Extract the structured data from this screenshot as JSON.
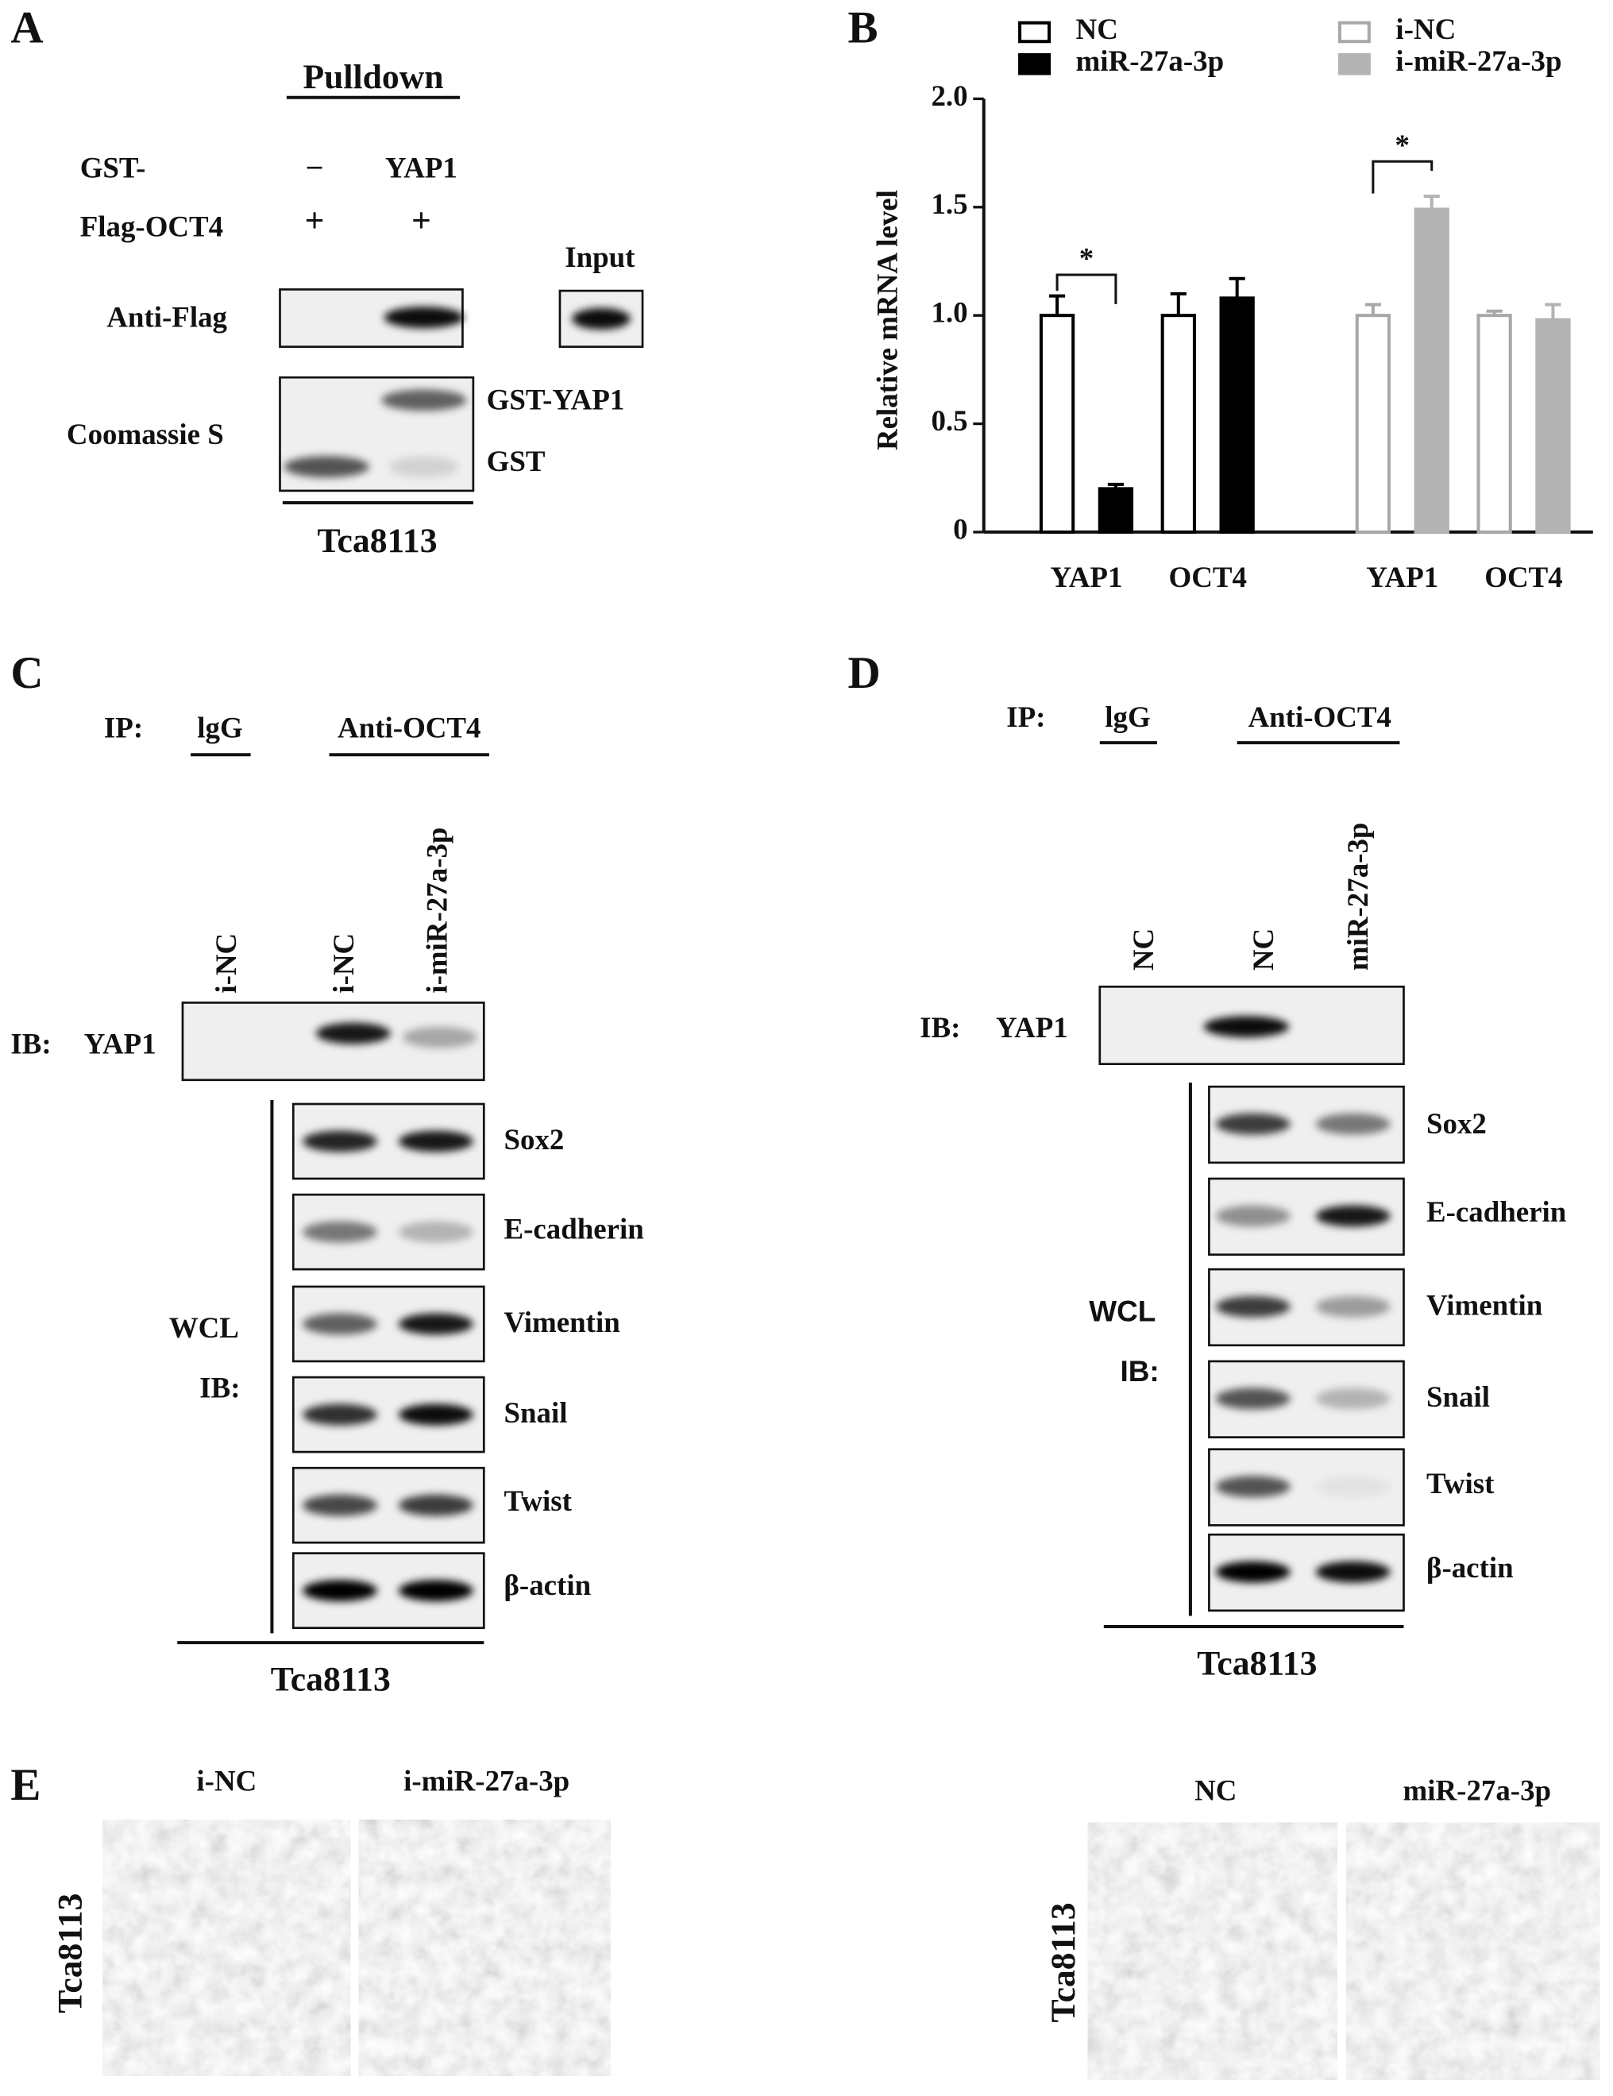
{
  "panel_a": {
    "label": "A",
    "title": "Pulldown",
    "gst_row": {
      "label": "GST-",
      "lanes": [
        "–",
        "YAP1"
      ]
    },
    "flag_row": {
      "label": "Flag-OCT4",
      "lanes": [
        "+",
        "+"
      ]
    },
    "input": "Input",
    "blots": [
      "Anti-Flag",
      "Coomassie S"
    ],
    "bands": [
      "GST-YAP1",
      "GST"
    ],
    "cell_line": "Tca8113"
  },
  "chart_data": {
    "type": "bar",
    "label": "B",
    "y_label": "Relative mRNA level",
    "categories": [
      "YAP1",
      "OCT4",
      "YAP1",
      "OCT4"
    ],
    "series": [
      {
        "name": "NC",
        "color": "#ffffff",
        "stroke": "#000000",
        "values": [
          1.0,
          1.0,
          null,
          null
        ],
        "errors": [
          0.09,
          0.1,
          null,
          null
        ]
      },
      {
        "name": "miR-27a-3p",
        "color": "#000000",
        "stroke": "#000000",
        "values": [
          0.2,
          1.08,
          null,
          null
        ],
        "errors": [
          0.02,
          0.09,
          null,
          null
        ]
      },
      {
        "name": "i-NC",
        "color": "#ffffff",
        "stroke": "#a8a8a8",
        "values": [
          null,
          null,
          1.0,
          1.0
        ],
        "errors": [
          null,
          null,
          0.05,
          0.02
        ]
      },
      {
        "name": "i-miR-27a-3p",
        "color": "#b3b3b3",
        "stroke": "#b3b3b3",
        "values": [
          null,
          null,
          1.49,
          0.98
        ],
        "errors": [
          null,
          null,
          0.06,
          0.07
        ]
      }
    ],
    "ylim": [
      0,
      2.0
    ],
    "yticks": [
      0,
      0.5,
      {
        "value": 1.0,
        "label": "1.0"
      },
      1.5,
      {
        "value": 2.0,
        "label": "2.0"
      }
    ],
    "annotations": [
      "*",
      "*"
    ]
  },
  "panel_c": {
    "label": "C",
    "ip": "IP:",
    "ip_groups": [
      "lgG",
      "Anti-OCT4"
    ],
    "lanes": [
      "i-NC",
      "i-NC",
      "i-miR-27a-3p"
    ],
    "ib": "IB:",
    "ib_target": "YAP1",
    "wcl": "WCL",
    "wcl_ib": "IB:",
    "proteins": [
      "Sox2",
      "E-cadherin",
      "Vimentin",
      "Snail",
      "Twist",
      "β-actin"
    ],
    "cell_line": "Tca8113"
  },
  "panel_d": {
    "label": "D",
    "ip": "IP:",
    "ip_groups": [
      "lgG",
      "Anti-OCT4"
    ],
    "lanes": [
      "NC",
      "NC",
      "miR-27a-3p"
    ],
    "ib": "IB:",
    "ib_target": "YAP1",
    "wcl": "WCL",
    "wcl_ib": "IB:",
    "proteins": [
      "Sox2",
      "E-cadherin",
      "Vimentin",
      "Snail",
      "Twist",
      "β-actin"
    ],
    "cell_line": "Tca8113"
  },
  "panel_e": {
    "label": "E",
    "left": {
      "conditions": [
        "i-NC",
        "i-miR-27a-3p"
      ],
      "cell_line": "Tca8113"
    },
    "right": {
      "conditions": [
        "NC",
        "miR-27a-3p"
      ],
      "cell_line": "Tca8113"
    }
  }
}
